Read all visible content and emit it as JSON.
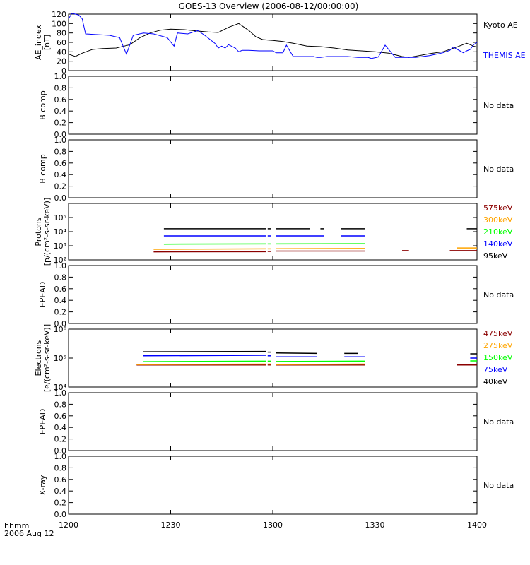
{
  "title": "GOES-13 Overview (2006-08-12/00:00:00)",
  "footer": {
    "line1": "hhmm",
    "line2": "2006 Aug 12"
  },
  "no_data_text": "No data",
  "x_axis": {
    "ticks": [
      "1200",
      "1230",
      "1300",
      "1330",
      "1400"
    ],
    "range_min": [
      0,
      120
    ]
  },
  "chart_data": [
    {
      "type": "line",
      "ylabel": [
        "AE_index",
        "[nT]"
      ],
      "ylim": [
        0,
        120
      ],
      "ticks": [
        "0",
        "20",
        "40",
        "60",
        "80",
        "100",
        "120"
      ],
      "tick_values": [
        0,
        20,
        40,
        60,
        80,
        100,
        120
      ],
      "series": [
        {
          "name": "Kyoto AE",
          "color": "#000000",
          "x": [
            0,
            2,
            4,
            7,
            10,
            14,
            18,
            21,
            24,
            27,
            30,
            34,
            38,
            41,
            44,
            47,
            50,
            53,
            55,
            57,
            60,
            63,
            66,
            70,
            74,
            78,
            82,
            86,
            90,
            94,
            98,
            100,
            103,
            106,
            110,
            114,
            117,
            119,
            120
          ],
          "y": [
            35,
            30,
            37,
            45,
            47,
            48,
            55,
            70,
            80,
            86,
            88,
            87,
            84,
            82,
            81,
            92,
            100,
            85,
            72,
            66,
            64,
            62,
            58,
            52,
            51,
            48,
            44,
            42,
            40,
            37,
            30,
            28,
            32,
            36,
            40,
            50,
            58,
            52,
            50
          ]
        },
        {
          "name": "THEMIS AE",
          "color": "#0000ff",
          "x": [
            0,
            1,
            2,
            3,
            4,
            5,
            12,
            15,
            17,
            19,
            22,
            25,
            29,
            31,
            32,
            35,
            38,
            40,
            43,
            44,
            45,
            46,
            47,
            49,
            50,
            51,
            53,
            56,
            60,
            61,
            63,
            64,
            66,
            70,
            72,
            73,
            74,
            76,
            82,
            85,
            88,
            89,
            91,
            93,
            96,
            99,
            100,
            102,
            104,
            106,
            108,
            110,
            112,
            113,
            115,
            116,
            117,
            118,
            119,
            120
          ],
          "y": [
            110,
            122,
            120,
            118,
            110,
            78,
            75,
            70,
            35,
            75,
            80,
            78,
            70,
            52,
            80,
            78,
            85,
            75,
            58,
            48,
            52,
            48,
            55,
            48,
            40,
            43,
            43,
            42,
            42,
            38,
            38,
            54,
            30,
            30,
            30,
            28,
            28,
            30,
            30,
            28,
            28,
            26,
            29,
            54,
            28,
            28,
            28,
            28,
            30,
            32,
            35,
            38,
            43,
            50,
            42,
            38,
            42,
            45,
            55,
            60
          ]
        }
      ]
    },
    {
      "type": "line",
      "ylabel": [
        "B comp"
      ],
      "ylim": [
        0,
        1
      ],
      "ticks": [
        "0.0",
        "0.2",
        "0.4",
        "0.6",
        "0.8",
        "1.0"
      ],
      "tick_values": [
        0,
        0.2,
        0.4,
        0.6,
        0.8,
        1.0
      ],
      "series": []
    },
    {
      "type": "line",
      "ylabel": [
        "B comp"
      ],
      "ylim": [
        0,
        1
      ],
      "ticks": [
        "0.0",
        "0.2",
        "0.4",
        "0.6",
        "0.8",
        "1.0"
      ],
      "tick_values": [
        0,
        0.2,
        0.4,
        0.6,
        0.8,
        1.0
      ],
      "series": []
    },
    {
      "type": "line",
      "log": true,
      "ylabel": [
        "Protons",
        "[p/(cm²-s-sr-keV)]"
      ],
      "ylim": [
        100,
        1000000
      ],
      "ticks": [
        "10²",
        "10³",
        "10⁴",
        "10⁵"
      ],
      "tick_values": [
        100,
        1000,
        10000,
        100000
      ],
      "series": [
        {
          "name": "575keV",
          "color": "#8b0000",
          "segments": [
            [
              [
                25,
                370
              ],
              [
                58,
                380
              ]
            ],
            [
              [
                58.5,
                400
              ],
              [
                59.5,
                400
              ]
            ],
            [
              [
                61,
                420
              ],
              [
                87,
                420
              ]
            ],
            [
              [
                98,
                450
              ],
              [
                100,
                450
              ]
            ],
            [
              [
                112,
                450
              ],
              [
                120,
                450
              ]
            ]
          ]
        },
        {
          "name": "300keV",
          "color": "#ffa500",
          "segments": [
            [
              [
                25,
                560
              ],
              [
                58,
                600
              ]
            ],
            [
              [
                58.5,
                600
              ],
              [
                59.5,
                600
              ]
            ],
            [
              [
                61,
                620
              ],
              [
                87,
                640
              ]
            ],
            [
              [
                114,
                700
              ],
              [
                120,
                700
              ]
            ]
          ]
        },
        {
          "name": "210keV",
          "color": "#00ff00",
          "segments": [
            [
              [
                28,
                1300
              ],
              [
                58,
                1350
              ]
            ],
            [
              [
                58.5,
                1350
              ],
              [
                59.5,
                1350
              ]
            ],
            [
              [
                61,
                1350
              ],
              [
                87,
                1400
              ]
            ]
          ]
        },
        {
          "name": "140keV",
          "color": "#0000ff",
          "segments": [
            [
              [
                28,
                5000
              ],
              [
                58,
                5000
              ]
            ],
            [
              [
                58.5,
                5000
              ],
              [
                59.5,
                5000
              ]
            ],
            [
              [
                61,
                5000
              ],
              [
                75,
                5000
              ]
            ],
            [
              [
                80,
                5000
              ],
              [
                87,
                5000
              ]
            ]
          ]
        },
        {
          "name": "95keV",
          "color": "#000000",
          "segments": [
            [
              [
                28,
                16000
              ],
              [
                58,
                16000
              ]
            ],
            [
              [
                58.5,
                16000
              ],
              [
                59.5,
                16000
              ]
            ],
            [
              [
                61,
                16000
              ],
              [
                71,
                16000
              ]
            ],
            [
              [
                74,
                16000
              ],
              [
                75,
                16000
              ]
            ],
            [
              [
                80,
                16000
              ],
              [
                87,
                16000
              ]
            ],
            [
              [
                117,
                16000
              ],
              [
                120,
                16000
              ]
            ]
          ]
        }
      ]
    },
    {
      "type": "line",
      "ylabel": [
        "EPEAD"
      ],
      "ylim": [
        0,
        1
      ],
      "ticks": [
        "0.0",
        "0.2",
        "0.4",
        "0.6",
        "0.8",
        "1.0"
      ],
      "tick_values": [
        0,
        0.2,
        0.4,
        0.6,
        0.8,
        1.0
      ],
      "series": []
    },
    {
      "type": "line",
      "log": true,
      "ylabel": [
        "Electrons",
        "[e/(cm²-s-sr-keV)]"
      ],
      "ylim": [
        10000,
        1000000
      ],
      "ticks": [
        "10⁴",
        "10⁵",
        "10⁶"
      ],
      "tick_values": [
        10000,
        100000,
        1000000
      ],
      "series": [
        {
          "name": "475keV",
          "color": "#8b0000",
          "segments": [
            [
              [
                20,
                58000
              ],
              [
                58,
                58000
              ]
            ],
            [
              [
                58.5,
                58000
              ],
              [
                59.5,
                58000
              ]
            ],
            [
              [
                61,
                58000
              ],
              [
                87,
                58000
              ]
            ],
            [
              [
                114,
                58000
              ],
              [
                120,
                58000
              ]
            ]
          ]
        },
        {
          "name": "275keV",
          "color": "#ffa500",
          "segments": [
            [
              [
                20,
                60000
              ],
              [
                58,
                62000
              ]
            ],
            [
              [
                58.5,
                62000
              ],
              [
                59.5,
                62000
              ]
            ],
            [
              [
                61,
                60000
              ],
              [
                87,
                62000
              ]
            ]
          ]
        },
        {
          "name": "150keV",
          "color": "#00ff00",
          "segments": [
            [
              [
                22,
                75000
              ],
              [
                58,
                78000
              ]
            ],
            [
              [
                58.5,
                78000
              ],
              [
                59.5,
                78000
              ]
            ],
            [
              [
                61,
                76000
              ],
              [
                87,
                78000
              ]
            ],
            [
              [
                118,
                80000
              ],
              [
                120,
                80000
              ]
            ]
          ]
        },
        {
          "name": "75keV",
          "color": "#0000ff",
          "segments": [
            [
              [
                22,
                120000
              ],
              [
                58,
                125000
              ]
            ],
            [
              [
                58.5,
                120000
              ],
              [
                59.5,
                120000
              ]
            ],
            [
              [
                61,
                110000
              ],
              [
                73,
                110000
              ]
            ],
            [
              [
                81,
                110000
              ],
              [
                87,
                110000
              ]
            ],
            [
              [
                118,
                100000
              ],
              [
                120,
                100000
              ]
            ]
          ]
        },
        {
          "name": "40keV",
          "color": "#000000",
          "segments": [
            [
              [
                22,
                165000
              ],
              [
                58,
                170000
              ]
            ],
            [
              [
                58.5,
                160000
              ],
              [
                59.5,
                160000
              ]
            ],
            [
              [
                61,
                150000
              ],
              [
                73,
                145000
              ]
            ],
            [
              [
                81,
                145000
              ],
              [
                85,
                145000
              ]
            ],
            [
              [
                118,
                140000
              ],
              [
                120,
                140000
              ]
            ]
          ]
        }
      ]
    },
    {
      "type": "line",
      "ylabel": [
        "EPEAD"
      ],
      "ylim": [
        0,
        1
      ],
      "ticks": [
        "0.0",
        "0.2",
        "0.4",
        "0.6",
        "0.8",
        "1.0"
      ],
      "tick_values": [
        0,
        0.2,
        0.4,
        0.6,
        0.8,
        1.0
      ],
      "series": []
    },
    {
      "type": "line",
      "ylabel": [
        "X-ray"
      ],
      "ylim": [
        0,
        1
      ],
      "ticks": [
        "0.0",
        "0.2",
        "0.4",
        "0.6",
        "0.8",
        "1.0"
      ],
      "tick_values": [
        0,
        0.2,
        0.4,
        0.6,
        0.8,
        1.0
      ],
      "series": []
    }
  ]
}
